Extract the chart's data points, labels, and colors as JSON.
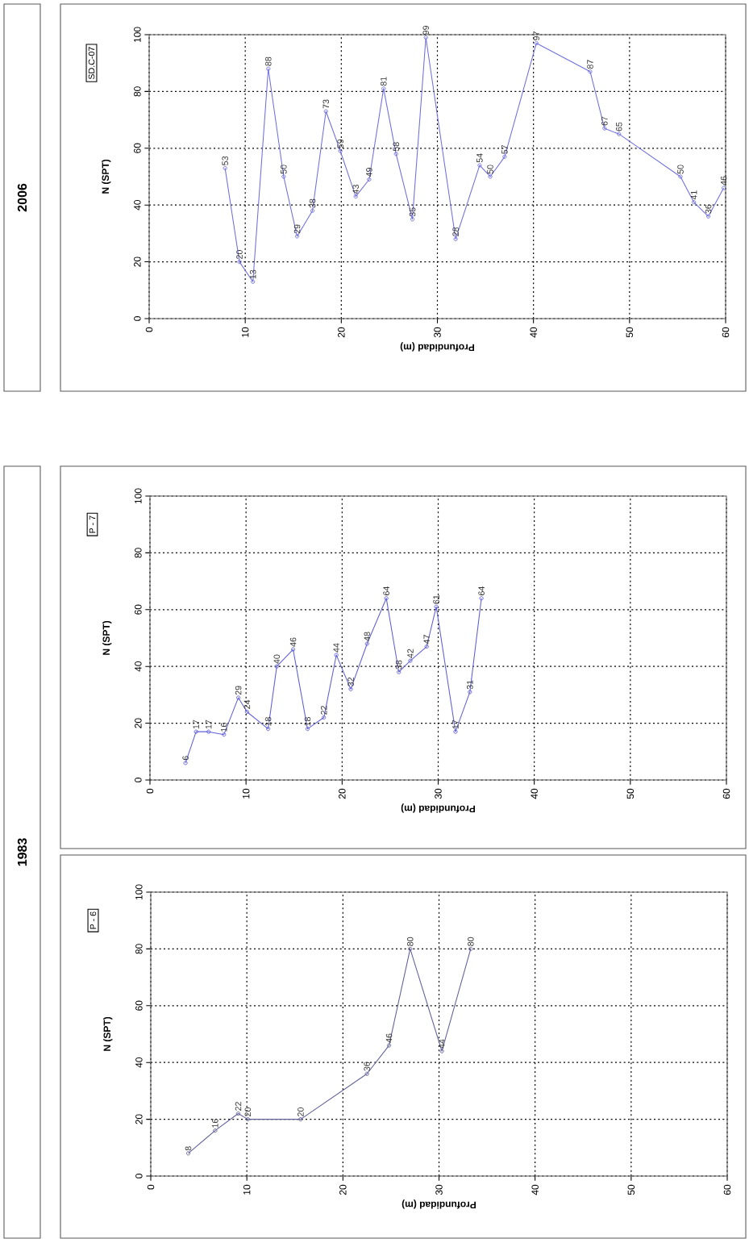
{
  "chart_data": [
    {
      "type": "line",
      "annotations": [
        "SD.C-07"
      ],
      "xlabel": "Profundidad (m)",
      "ylabel": "N (SPT)",
      "color": "#7070e0",
      "marker": "circle",
      "data_labels": true,
      "grid": true,
      "x": [
        7.9,
        9.4,
        10.8,
        12.4,
        14.0,
        15.4,
        17.0,
        18.4,
        19.9,
        21.5,
        22.9,
        24.4,
        25.7,
        27.4,
        28.8,
        31.9,
        34.4,
        35.5,
        37.0,
        40.3,
        45.9,
        47.4,
        48.9,
        55.3,
        56.7,
        58.2,
        59.8
      ],
      "values": [
        53,
        20,
        13,
        88,
        50,
        29,
        38,
        73,
        59,
        43,
        49,
        81,
        58,
        35,
        99,
        28,
        54,
        50,
        57,
        97,
        87,
        67,
        65,
        50,
        41,
        36,
        46
      ],
      "xlim": [
        0,
        60
      ],
      "ylim": [
        0,
        100
      ],
      "xticks": [
        0,
        10,
        20,
        30,
        40,
        50,
        60
      ],
      "yticks": [
        0,
        20,
        40,
        60,
        80,
        100
      ]
    },
    {
      "type": "line",
      "annotations": [
        "P - 7"
      ],
      "xlabel": "Profundidad (m)",
      "ylabel": "N (SPT)",
      "color": "#6060d8",
      "marker": "circle",
      "data_labels": true,
      "grid": true,
      "x": [
        3.7,
        4.8,
        6.1,
        7.7,
        9.2,
        10.1,
        12.3,
        13.2,
        14.9,
        16.4,
        18.1,
        19.4,
        20.9,
        22.6,
        24.6,
        25.9,
        27.1,
        28.8,
        29.8,
        31.8,
        33.3,
        34.5
      ],
      "values": [
        6,
        17,
        17,
        16,
        29,
        24,
        18,
        40,
        46,
        18,
        22,
        44,
        32,
        48,
        64,
        38,
        42,
        47,
        61,
        17,
        31,
        64
      ],
      "xlim": [
        0,
        60
      ],
      "ylim": [
        0,
        100
      ],
      "xticks": [
        0,
        10,
        20,
        30,
        40,
        50,
        60
      ],
      "yticks": [
        0,
        20,
        40,
        60,
        80,
        100
      ]
    },
    {
      "type": "line",
      "annotations": [
        "P - 6"
      ],
      "xlabel": "Profundidad (m)",
      "ylabel": "N (SPT)",
      "color": "#606098",
      "marker": "circle",
      "data_labels": true,
      "grid": true,
      "x": [
        3.9,
        6.7,
        9.1,
        10.1,
        15.6,
        22.5,
        24.8,
        27.0,
        30.3,
        33.3
      ],
      "values": [
        8,
        16,
        22,
        20,
        20,
        36,
        46,
        80,
        44,
        80
      ],
      "xlim": [
        0,
        60
      ],
      "ylim": [
        0,
        100
      ],
      "xticks": [
        0,
        10,
        20,
        30,
        40,
        50,
        60
      ],
      "yticks": [
        0,
        20,
        40,
        60,
        80,
        100
      ]
    },
    {
      "type": "other",
      "annotations": [
        "2006",
        "1983"
      ]
    }
  ]
}
